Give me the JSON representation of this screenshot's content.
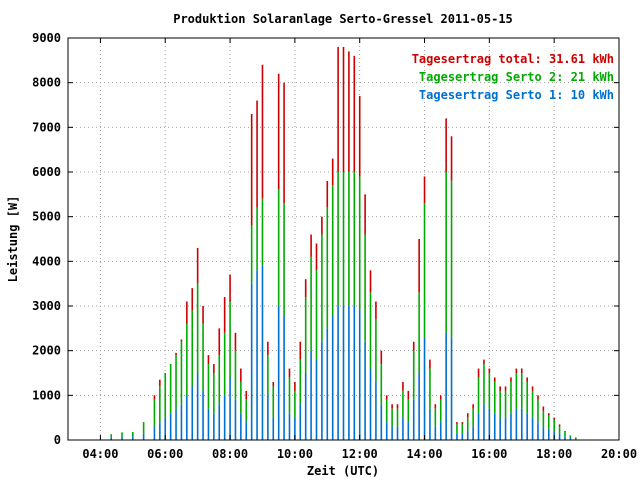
{
  "chart_data": {
    "type": "bar",
    "stacked": true,
    "title": "Produktion Solaranlage Serto-Gressel 2011-05-15",
    "xlabel": "Zeit (UTC)",
    "ylabel": "Leistung [W]",
    "ylim": [
      0,
      9000
    ],
    "xlim": [
      "03:00",
      "20:00"
    ],
    "yticks": [
      "0",
      "1000",
      "2000",
      "3000",
      "4000",
      "5000",
      "6000",
      "7000",
      "8000",
      "9000"
    ],
    "xticks": [
      "04:00",
      "06:00",
      "08:00",
      "10:00",
      "12:00",
      "14:00",
      "16:00",
      "18:00",
      "20:00"
    ],
    "grid": true,
    "legend_position": "top-right",
    "legend": [
      {
        "text": "Tagesertrag total: 31.61 kWh",
        "color": "#cc0000"
      },
      {
        "text": "Tagesertrag Serto 2: 21 kWh",
        "color": "#00aa00"
      },
      {
        "text": "Tagesertrag Serto 1: 10 kWh",
        "color": "#0070d0"
      }
    ],
    "colors": {
      "total": "#cc0000",
      "serto2": "#00aa00",
      "serto1": "#0070d0"
    },
    "x": [
      "04:20",
      "04:40",
      "05:00",
      "05:20",
      "05:40",
      "05:50",
      "06:00",
      "06:10",
      "06:20",
      "06:30",
      "06:40",
      "06:50",
      "07:00",
      "07:10",
      "07:20",
      "07:30",
      "07:40",
      "07:50",
      "08:00",
      "08:10",
      "08:20",
      "08:30",
      "08:40",
      "08:50",
      "09:00",
      "09:10",
      "09:20",
      "09:30",
      "09:40",
      "09:50",
      "10:00",
      "10:10",
      "10:20",
      "10:30",
      "10:40",
      "10:50",
      "11:00",
      "11:10",
      "11:20",
      "11:30",
      "11:40",
      "11:50",
      "12:00",
      "12:10",
      "12:20",
      "12:30",
      "12:40",
      "12:50",
      "13:00",
      "13:10",
      "13:20",
      "13:30",
      "13:40",
      "13:50",
      "14:00",
      "14:10",
      "14:20",
      "14:30",
      "14:40",
      "14:50",
      "15:00",
      "15:10",
      "15:20",
      "15:30",
      "15:40",
      "15:50",
      "16:00",
      "16:10",
      "16:20",
      "16:30",
      "16:40",
      "16:50",
      "17:00",
      "17:10",
      "17:20",
      "17:30",
      "17:40",
      "17:50",
      "18:00",
      "18:10",
      "18:20",
      "18:30",
      "18:40"
    ],
    "series": [
      {
        "name": "Serto 1",
        "values": [
          50,
          70,
          80,
          150,
          300,
          400,
          500,
          600,
          700,
          800,
          1000,
          1200,
          1500,
          1100,
          700,
          600,
          800,
          1000,
          1400,
          900,
          600,
          400,
          3500,
          3800,
          3900,
          1000,
          500,
          3000,
          2800,
          600,
          500,
          800,
          1500,
          2000,
          1800,
          2200,
          2500,
          2800,
          3000,
          3000,
          3000,
          3000,
          2900,
          2200,
          1600,
          1300,
          800,
          400,
          300,
          300,
          500,
          400,
          900,
          1500,
          2300,
          700,
          300,
          400,
          2400,
          2300,
          150,
          150,
          200,
          300,
          600,
          800,
          700,
          600,
          500,
          500,
          600,
          700,
          700,
          600,
          500,
          400,
          300,
          250,
          200,
          150,
          80,
          40,
          20
        ]
      },
      {
        "name": "Serto 2",
        "values": [
          80,
          100,
          100,
          250,
          600,
          800,
          1000,
          1100,
          1200,
          1400,
          1600,
          1700,
          2000,
          1500,
          1000,
          900,
          1100,
          1400,
          1700,
          1100,
          700,
          500,
          1300,
          1400,
          1500,
          900,
          700,
          2600,
          2500,
          800,
          600,
          1000,
          1700,
          2100,
          2000,
          2400,
          2700,
          2900,
          3000,
          3000,
          3000,
          3000,
          3000,
          2400,
          1700,
          1400,
          900,
          500,
          400,
          400,
          600,
          500,
          1100,
          1800,
          3000,
          900,
          400,
          500,
          3600,
          3500,
          200,
          200,
          300,
          400,
          800,
          900,
          800,
          700,
          600,
          600,
          700,
          800,
          800,
          700,
          600,
          500,
          350,
          300,
          250,
          150,
          100,
          50,
          30
        ]
      },
      {
        "name": "Total",
        "values": [
          130,
          170,
          180,
          400,
          1000,
          1350,
          1500,
          1700,
          1950,
          2250,
          3100,
          3400,
          4300,
          3000,
          1900,
          1700,
          2500,
          3200,
          3700,
          2400,
          1600,
          1100,
          7300,
          7600,
          8400,
          2200,
          1300,
          8200,
          8000,
          1600,
          1300,
          2200,
          3600,
          4600,
          4400,
          5000,
          5800,
          6300,
          8800,
          8800,
          8700,
          8600,
          7700,
          5500,
          3800,
          3100,
          2000,
          1000,
          800,
          800,
          1300,
          1100,
          2200,
          4500,
          5900,
          1800,
          800,
          1000,
          7200,
          6800,
          400,
          400,
          600,
          800,
          1600,
          1800,
          1600,
          1400,
          1200,
          1200,
          1400,
          1600,
          1600,
          1400,
          1200,
          1000,
          750,
          600,
          500,
          350,
          200,
          100,
          60
        ]
      }
    ]
  }
}
